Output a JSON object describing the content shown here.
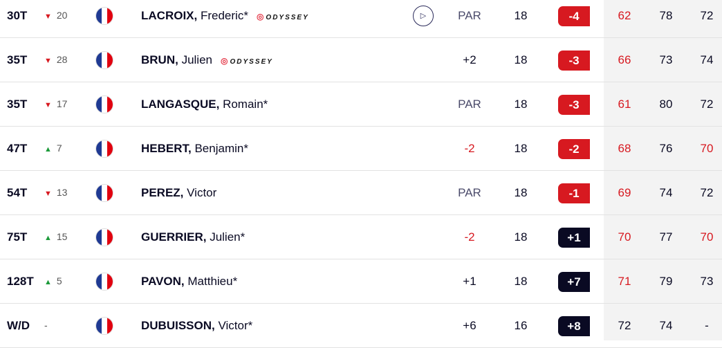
{
  "colors": {
    "under_par": "#d71920",
    "over_par_badge": "#0a0a23",
    "up": "#1c9a3a",
    "down": "#d71920"
  },
  "rows": [
    {
      "pos": "30T",
      "move_dir": "down",
      "move": "20",
      "country": "France",
      "name_last": "LACROIX,",
      "name_first": "Frederic*",
      "sponsor": "ODYSSEY",
      "play_icon": true,
      "today": "PAR",
      "thru": "18",
      "total": "-4",
      "r1": "62",
      "r2": "78",
      "r3": "72",
      "r1_red": true,
      "r2_red": false,
      "r3_red": false
    },
    {
      "pos": "35T",
      "move_dir": "down",
      "move": "28",
      "country": "France",
      "name_last": "BRUN,",
      "name_first": "Julien",
      "sponsor": "ODYSSEY",
      "today": "+2",
      "thru": "18",
      "total": "-3",
      "r1": "66",
      "r2": "73",
      "r3": "74",
      "r1_red": true
    },
    {
      "pos": "35T",
      "move_dir": "down",
      "move": "17",
      "country": "France",
      "name_last": "LANGASQUE,",
      "name_first": "Romain*",
      "today": "PAR",
      "thru": "18",
      "total": "-3",
      "r1": "61",
      "r2": "80",
      "r3": "72",
      "r1_red": true
    },
    {
      "pos": "47T",
      "move_dir": "up",
      "move": "7",
      "country": "France",
      "name_last": "HEBERT,",
      "name_first": "Benjamin*",
      "today": "-2",
      "thru": "18",
      "total": "-2",
      "r1": "68",
      "r2": "76",
      "r3": "70",
      "r1_red": true,
      "r3_red": true
    },
    {
      "pos": "54T",
      "move_dir": "down",
      "move": "13",
      "country": "France",
      "name_last": "PEREZ,",
      "name_first": "Victor",
      "today": "PAR",
      "thru": "18",
      "total": "-1",
      "r1": "69",
      "r2": "74",
      "r3": "72",
      "r1_red": true
    },
    {
      "pos": "75T",
      "move_dir": "up",
      "move": "15",
      "country": "France",
      "name_last": "GUERRIER,",
      "name_first": "Julien*",
      "today": "-2",
      "thru": "18",
      "total": "+1",
      "r1": "70",
      "r2": "77",
      "r3": "70",
      "r1_red": true,
      "r3_red": true
    },
    {
      "pos": "128T",
      "move_dir": "up",
      "move": "5",
      "country": "France",
      "name_last": "PAVON,",
      "name_first": "Matthieu*",
      "today": "+1",
      "thru": "18",
      "total": "+7",
      "r1": "71",
      "r2": "79",
      "r3": "73",
      "r1_red": true
    },
    {
      "pos": "W/D",
      "move_dir": "none",
      "move": "-",
      "country": "France",
      "name_last": "DUBUISSON,",
      "name_first": "Victor*",
      "today": "+6",
      "thru": "16",
      "total": "+8",
      "r1": "72",
      "r2": "74",
      "r3": "-"
    }
  ]
}
